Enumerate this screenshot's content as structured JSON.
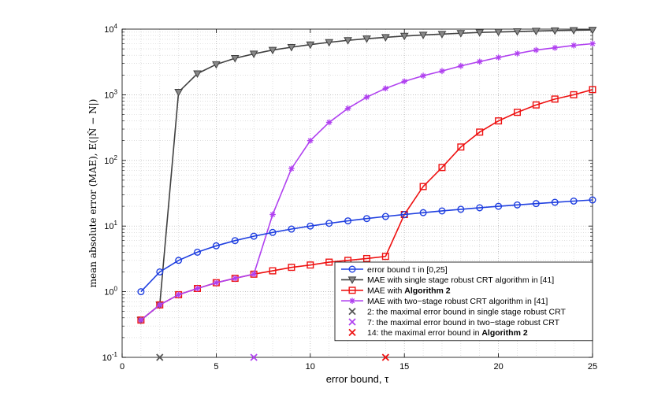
{
  "chart_data": {
    "type": "line",
    "xlabel": "error bound, τ",
    "ylabel": "mean absolute error (MAE), E(|N̂ − N|)",
    "xlim": [
      0,
      25
    ],
    "ylim": [
      0.1,
      10000
    ],
    "yscale": "log",
    "grid": true,
    "legend_position": "bottom-right",
    "x_ticks": [
      "0",
      "5",
      "10",
      "15",
      "20",
      "25"
    ],
    "y_ticks": [
      {
        "base": "10",
        "exp": "-1",
        "value": 0.1
      },
      {
        "base": "10",
        "exp": "0",
        "value": 1
      },
      {
        "base": "10",
        "exp": "1",
        "value": 10
      },
      {
        "base": "10",
        "exp": "2",
        "value": 100
      },
      {
        "base": "10",
        "exp": "3",
        "value": 1000
      },
      {
        "base": "10",
        "exp": "4",
        "value": 10000
      }
    ],
    "series": [
      {
        "name": "error bound τ in [0,25]",
        "color": "#1f3fe0",
        "marker": "circle",
        "x": [
          1,
          2,
          3,
          4,
          5,
          6,
          7,
          8,
          9,
          10,
          11,
          12,
          13,
          14,
          15,
          16,
          17,
          18,
          19,
          20,
          21,
          22,
          23,
          24,
          25
        ],
        "y": [
          1,
          2,
          3,
          4,
          5,
          6,
          7,
          8,
          9,
          10,
          11,
          12,
          13,
          14,
          15,
          16,
          17,
          18,
          19,
          20,
          21,
          22,
          23,
          24,
          25
        ]
      },
      {
        "name": "MAE with single stage robust CRT algorithm in [41]",
        "color": "#404040",
        "marker": "triangle-down",
        "x": [
          1,
          2,
          3,
          4,
          5,
          6,
          7,
          8,
          9,
          10,
          11,
          12,
          13,
          14,
          15,
          16,
          17,
          18,
          19,
          20,
          21,
          22,
          23,
          24,
          25
        ],
        "y": [
          0.37,
          0.63,
          1100,
          2100,
          2900,
          3600,
          4200,
          4800,
          5300,
          5800,
          6300,
          6750,
          7150,
          7500,
          7850,
          8150,
          8400,
          8650,
          8900,
          9050,
          9200,
          9350,
          9500,
          9600,
          9700
        ]
      },
      {
        "name_prefix": "MAE with ",
        "name_bold": "Algorithm 2",
        "color": "#ee1111",
        "marker": "square",
        "x": [
          1,
          2,
          3,
          4,
          5,
          6,
          7,
          8,
          9,
          10,
          11,
          12,
          13,
          14,
          15,
          16,
          17,
          18,
          19,
          20,
          21,
          22,
          23,
          24,
          25
        ],
        "y": [
          0.37,
          0.63,
          0.9,
          1.12,
          1.37,
          1.6,
          1.85,
          2.08,
          2.35,
          2.55,
          2.82,
          3.0,
          3.2,
          3.45,
          15,
          40,
          78,
          160,
          270,
          400,
          540,
          700,
          860,
          1000,
          1200
        ]
      },
      {
        "name": "MAE with two−stage robust CRT algorithm in [41]",
        "color": "#b040f0",
        "marker": "asterisk",
        "x": [
          1,
          2,
          3,
          4,
          5,
          6,
          7,
          8,
          9,
          10,
          11,
          12,
          13,
          14,
          15,
          16,
          17,
          18,
          19,
          20,
          21,
          22,
          23,
          24,
          25
        ],
        "y": [
          0.37,
          0.63,
          0.9,
          1.12,
          1.37,
          1.6,
          1.85,
          15,
          75,
          200,
          380,
          620,
          920,
          1250,
          1600,
          1950,
          2300,
          2750,
          3200,
          3700,
          4250,
          4800,
          5200,
          5650,
          6000
        ]
      }
    ],
    "markers_on_axis": [
      {
        "name": "2: the maximal error bound in single stage robust CRT",
        "x": 2,
        "color": "#555555"
      },
      {
        "name": "7: the maximal error bound in two−stage robust CRT",
        "x": 7,
        "color": "#b040f0"
      },
      {
        "name_prefix": "14: the maximal error bound in ",
        "name_bold": "Algorithm 2",
        "x": 14,
        "color": "#ee1111"
      }
    ]
  }
}
